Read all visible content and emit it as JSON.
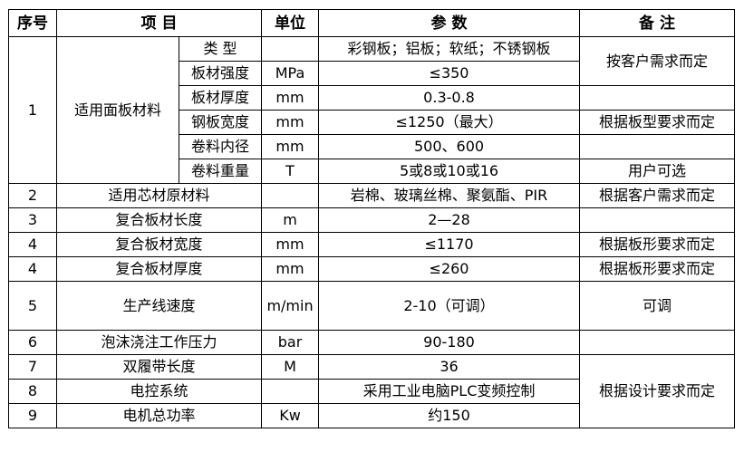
{
  "header": {
    "no": "序号",
    "item": "项 目",
    "unit": "单位",
    "param": "参 数",
    "remark": "备 注"
  },
  "row1": {
    "no": "1",
    "item": "适用面板材料",
    "sub": [
      {
        "name": "类 型",
        "unit": "",
        "param": "彩钢板；铝板；软纸；不锈钢板"
      },
      {
        "name": "板材强度",
        "unit": "MPa",
        "param": "≤350"
      },
      {
        "name": "板材厚度",
        "unit": "mm",
        "param": "0.3-0.8",
        "remark": ""
      },
      {
        "name": "钢板宽度",
        "unit": "mm",
        "param": "≤1250（最大）",
        "remark": "根据板型要求而定"
      },
      {
        "name": "卷料内径",
        "unit": "mm",
        "param": "500、600",
        "remark": ""
      },
      {
        "name": "卷料重量",
        "unit": "T",
        "param": "5或8或10或16",
        "remark": "用户可选"
      }
    ],
    "remark_top": "按客户需求而定"
  },
  "rows": [
    {
      "no": "2",
      "item": "适用芯材原材料",
      "unit": "",
      "param": "岩棉、玻璃丝棉、聚氨酯、PIR",
      "remark": "根据客户需求而定"
    },
    {
      "no": "3",
      "item": "复合板材长度",
      "unit": "m",
      "param": "2—28",
      "remark": ""
    },
    {
      "no": "4",
      "item": "复合板材宽度",
      "unit": "mm",
      "param": "≤1170",
      "remark": "根据板形要求而定"
    },
    {
      "no": "4",
      "item": "复合板材厚度",
      "unit": "mm",
      "param": "≤260",
      "remark": "根据板形要求而定"
    },
    {
      "no": "5",
      "item": "生产线速度",
      "unit": "m/min",
      "param": "2-10（可调）",
      "remark": "可调"
    },
    {
      "no": "6",
      "item": "泡沫浇注工作压力",
      "unit": "bar",
      "param": "90-180",
      "remark": ""
    },
    {
      "no": "7",
      "item": "双履带长度",
      "unit": "M",
      "param": "36"
    },
    {
      "no": "8",
      "item": "电控系统",
      "unit": "",
      "param": "采用工业电脑PLC变频控制"
    },
    {
      "no": "9",
      "item": "电机总功率",
      "unit": "Kw",
      "param": "约150"
    }
  ],
  "remark_bottom": "根据设计要求而定"
}
